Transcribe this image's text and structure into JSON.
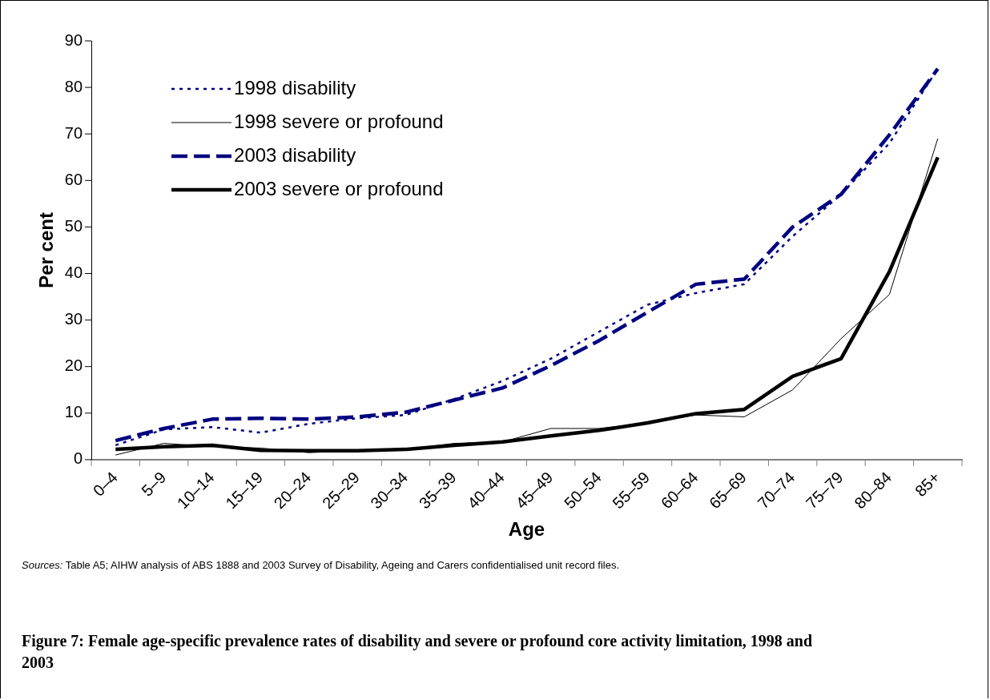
{
  "chart_data": {
    "type": "line",
    "title": "Figure 7: Female age-specific prevalence rates of disability and severe or profound core activity limitation, 1998 and 2003",
    "xlabel": "Age",
    "ylabel": "Per cent",
    "categories": [
      "0–4",
      "5–9",
      "10–14",
      "15–19",
      "20–24",
      "25–29",
      "30–34",
      "35–39",
      "40–44",
      "45–49",
      "50–54",
      "55–59",
      "60–64",
      "65–69",
      "70–74",
      "75–79",
      "80–84",
      "85+"
    ],
    "series": [
      {
        "name": "1998 disability",
        "color": "#000080",
        "line_style": "dotted",
        "values": [
          3.1,
          6.5,
          7,
          5.8,
          7.7,
          8.9,
          9.6,
          13,
          16.9,
          21.7,
          27.5,
          33.3,
          35.8,
          37.7,
          48,
          57,
          68,
          84
        ]
      },
      {
        "name": "1998 severe or profound",
        "color": "#000000",
        "line_style": "solid",
        "values": [
          1,
          3.5,
          2.8,
          2.5,
          1.5,
          2,
          2.2,
          3.5,
          3.8,
          6.7,
          6.7,
          7.9,
          9.6,
          9.2,
          15,
          26,
          35.5,
          69
        ]
      },
      {
        "name": "2003 disability",
        "color": "#000080",
        "line_style": "dashed",
        "values": [
          4.1,
          6.7,
          8.7,
          8.9,
          8.7,
          9.2,
          10.2,
          12.8,
          15.4,
          20.2,
          25.6,
          31.7,
          37.7,
          38.8,
          50,
          57,
          69.8,
          84
        ]
      },
      {
        "name": "2003 severe or profound",
        "color": "#000000",
        "line_style": "solid",
        "values": [
          2.2,
          2.8,
          3.1,
          2,
          1.9,
          1.9,
          2.2,
          3.1,
          3.8,
          5.1,
          6.3,
          7.9,
          9.9,
          10.8,
          17.9,
          21.7,
          40.4,
          65
        ]
      }
    ],
    "ylim": [
      0,
      90
    ],
    "yticks": [
      0,
      10,
      20,
      30,
      40,
      50,
      60,
      70,
      80,
      90
    ],
    "grid": false,
    "legend": "top left",
    "marker": "none",
    "annotations": [
      "Sources: Table A5; AIHW analysis of ABS 1888 and 2003 Survey of Disability, Ageing and Carers confidentialised unit record files."
    ]
  }
}
